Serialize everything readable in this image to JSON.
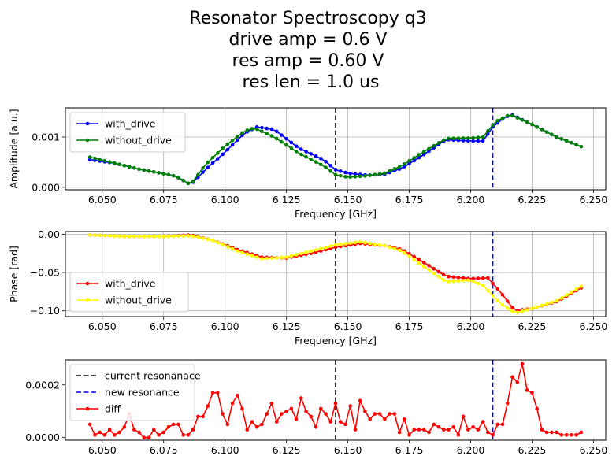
{
  "figure": {
    "title_lines": [
      "Resonator Spectroscopy q3",
      "drive amp = 0.6 V",
      "res amp = 0.60 V",
      " res len = 1.0 us"
    ]
  },
  "chart_data": [
    {
      "type": "line",
      "xlabel": "Frequency [GHz]",
      "ylabel": "Amplitude [a.u.]",
      "xlim": [
        6.035,
        6.255
      ],
      "ylim": [
        -5e-05,
        0.00158
      ],
      "xticks": [
        "6.050",
        "6.075",
        "6.100",
        "6.125",
        "6.150",
        "6.175",
        "6.200",
        "6.225",
        "6.250"
      ],
      "yticks": [
        {
          "v": 0,
          "label": "0.000"
        },
        {
          "v": 0.001,
          "label": "0.001"
        }
      ],
      "grid": true,
      "legend": "upper-left",
      "vlines": [
        {
          "x": 6.145,
          "color": "#000000"
        },
        {
          "x": 6.209,
          "color": "#0000ff"
        }
      ],
      "x": {
        "start": 6.045,
        "step": 0.002,
        "count": 101
      },
      "series": [
        {
          "name": "with_drive",
          "color": "#0000ff",
          "anchors": [
            [
              6.045,
              0.00055
            ],
            [
              6.055,
              0.00048
            ],
            [
              6.065,
              0.00036
            ],
            [
              6.075,
              0.00027
            ],
            [
              6.08,
              0.00022
            ],
            [
              6.086,
              5e-05
            ],
            [
              6.092,
              0.00035
            ],
            [
              6.1,
              0.0007
            ],
            [
              6.108,
              0.00108
            ],
            [
              6.113,
              0.0012
            ],
            [
              6.12,
              0.00115
            ],
            [
              6.13,
              0.00078
            ],
            [
              6.14,
              0.00055
            ],
            [
              6.145,
              0.00035
            ],
            [
              6.15,
              0.00028
            ],
            [
              6.158,
              0.00024
            ],
            [
              6.165,
              0.00026
            ],
            [
              6.172,
              0.00038
            ],
            [
              6.18,
              0.00062
            ],
            [
              6.19,
              0.00095
            ],
            [
              6.2,
              0.00092
            ],
            [
              6.205,
              0.00092
            ],
            [
              6.209,
              0.0012
            ],
            [
              6.214,
              0.0014
            ],
            [
              6.217,
              0.00144
            ],
            [
              6.225,
              0.00125
            ],
            [
              6.235,
              0.001
            ],
            [
              6.245,
              0.00081
            ]
          ]
        },
        {
          "name": "without_drive",
          "color": "#008000",
          "anchors": [
            [
              6.045,
              0.0006
            ],
            [
              6.055,
              0.00048
            ],
            [
              6.065,
              0.00036
            ],
            [
              6.075,
              0.00027
            ],
            [
              6.08,
              0.00022
            ],
            [
              6.086,
              5e-05
            ],
            [
              6.092,
              0.00045
            ],
            [
              6.1,
              0.00082
            ],
            [
              6.108,
              0.00112
            ],
            [
              6.112,
              0.00118
            ],
            [
              6.12,
              0.001
            ],
            [
              6.13,
              0.00068
            ],
            [
              6.14,
              0.00043
            ],
            [
              6.145,
              0.00025
            ],
            [
              6.15,
              0.0002
            ],
            [
              6.158,
              0.00023
            ],
            [
              6.165,
              0.00028
            ],
            [
              6.172,
              0.00043
            ],
            [
              6.18,
              0.00068
            ],
            [
              6.19,
              0.00097
            ],
            [
              6.2,
              0.00098
            ],
            [
              6.205,
              0.001
            ],
            [
              6.21,
              0.0013
            ],
            [
              6.216,
              0.00145
            ],
            [
              6.225,
              0.00125
            ],
            [
              6.235,
              0.001
            ],
            [
              6.245,
              0.00081
            ]
          ]
        }
      ]
    },
    {
      "type": "line",
      "xlabel": "Frequency [GHz]",
      "ylabel": "Phase [rad]",
      "xlim": [
        6.035,
        6.255
      ],
      "ylim": [
        -0.1075,
        0.0035
      ],
      "xticks": [
        "6.050",
        "6.075",
        "6.100",
        "6.125",
        "6.150",
        "6.175",
        "6.200",
        "6.225",
        "6.250"
      ],
      "yticks": [
        {
          "v": 0,
          "label": "0.00"
        },
        {
          "v": -0.05,
          "label": "−0.05"
        },
        {
          "v": -0.1,
          "label": "−0.10"
        }
      ],
      "grid": true,
      "legend": "lower-left",
      "vlines": [
        {
          "x": 6.145,
          "color": "#000000"
        },
        {
          "x": 6.209,
          "color": "#0000ff"
        }
      ],
      "x": {
        "start": 6.045,
        "step": 0.002,
        "count": 101
      },
      "series": [
        {
          "name": "with_drive",
          "color": "#ff0000",
          "anchors": [
            [
              6.045,
              -0.001
            ],
            [
              6.06,
              -0.003
            ],
            [
              6.075,
              -0.003
            ],
            [
              6.086,
              -0.001
            ],
            [
              6.095,
              -0.008
            ],
            [
              6.105,
              -0.02
            ],
            [
              6.115,
              -0.03
            ],
            [
              6.125,
              -0.031
            ],
            [
              6.135,
              -0.025
            ],
            [
              6.145,
              -0.017
            ],
            [
              6.155,
              -0.012
            ],
            [
              6.165,
              -0.015
            ],
            [
              6.172,
              -0.02
            ],
            [
              6.18,
              -0.035
            ],
            [
              6.19,
              -0.055
            ],
            [
              6.2,
              -0.058
            ],
            [
              6.207,
              -0.057
            ],
            [
              6.212,
              -0.075
            ],
            [
              6.218,
              -0.1
            ],
            [
              6.225,
              -0.097
            ],
            [
              6.235,
              -0.088
            ],
            [
              6.245,
              -0.07
            ]
          ]
        },
        {
          "name": "without_drive",
          "color": "#ffff00",
          "anchors": [
            [
              6.045,
              -0.001
            ],
            [
              6.06,
              -0.003
            ],
            [
              6.075,
              -0.003
            ],
            [
              6.086,
              -0.002
            ],
            [
              6.095,
              -0.008
            ],
            [
              6.105,
              -0.022
            ],
            [
              6.115,
              -0.032
            ],
            [
              6.125,
              -0.03
            ],
            [
              6.135,
              -0.022
            ],
            [
              6.145,
              -0.014
            ],
            [
              6.155,
              -0.01
            ],
            [
              6.165,
              -0.015
            ],
            [
              6.172,
              -0.022
            ],
            [
              6.18,
              -0.04
            ],
            [
              6.19,
              -0.062
            ],
            [
              6.2,
              -0.06
            ],
            [
              6.205,
              -0.067
            ],
            [
              6.212,
              -0.09
            ],
            [
              6.218,
              -0.103
            ],
            [
              6.225,
              -0.097
            ],
            [
              6.235,
              -0.087
            ],
            [
              6.245,
              -0.068
            ]
          ]
        }
      ]
    },
    {
      "type": "line",
      "xlabel": "",
      "ylabel": "",
      "xlim": [
        6.035,
        6.255
      ],
      "ylim": [
        -1e-05,
        0.000295
      ],
      "xticks": [
        "6.050",
        "6.075",
        "6.100",
        "6.125",
        "6.150",
        "6.175",
        "6.200",
        "6.225",
        "6.250"
      ],
      "yticks": [
        {
          "v": 0,
          "label": "0.0000"
        },
        {
          "v": 0.0002,
          "label": "0.0002"
        }
      ],
      "grid": false,
      "legend": "upper-left",
      "vlines": [
        {
          "x": 6.145,
          "color": "#000000",
          "name": "current resonanace"
        },
        {
          "x": 6.209,
          "color": "#0000ff",
          "name": "new resonance"
        }
      ],
      "x": {
        "start": 6.045,
        "step": 0.002,
        "count": 101
      },
      "series": [
        {
          "name": "diff",
          "color": "#ff0000",
          "values": [
            5e-05,
            1e-05,
            2e-05,
            1e-05,
            3e-05,
            1e-05,
            2e-05,
            4e-05,
            9e-05,
            3e-05,
            2e-05,
            0.0,
            0.0,
            3e-05,
            1e-05,
            2e-05,
            4e-05,
            5e-05,
            5e-05,
            1e-05,
            1e-05,
            3e-05,
            8e-05,
            8e-05,
            0.00012,
            0.00017,
            0.00017,
            9e-05,
            5e-05,
            0.00013,
            0.00016,
            0.00011,
            3e-05,
            6e-05,
            4e-05,
            5e-05,
            9e-05,
            0.00013,
            6e-05,
            9e-05,
            0.0001,
            0.00011,
            7e-05,
            0.00015,
            0.0001,
            8e-05,
            4e-05,
            0.00011,
            9e-05,
            6e-05,
            0.00013,
            6e-05,
            5e-05,
            0.00012,
            3e-05,
            0.00014,
            0.0001,
            7e-05,
            9e-05,
            9e-05,
            7e-05,
            9e-05,
            9e-05,
            2e-05,
            7e-05,
            1e-05,
            3e-05,
            3e-05,
            3e-05,
            2e-05,
            5e-05,
            4e-05,
            3e-05,
            3e-05,
            4e-05,
            1e-05,
            8e-05,
            3e-05,
            4e-05,
            3e-05,
            6e-05,
            2e-05,
            1e-05,
            5e-05,
            5e-05,
            0.00013,
            0.00023,
            0.00021,
            0.00028,
            0.00018,
            0.00017,
            0.00011,
            3e-05,
            2e-05,
            2e-05,
            2e-05,
            1e-05,
            1e-05,
            1e-05,
            1e-05,
            2e-05
          ]
        }
      ]
    }
  ]
}
